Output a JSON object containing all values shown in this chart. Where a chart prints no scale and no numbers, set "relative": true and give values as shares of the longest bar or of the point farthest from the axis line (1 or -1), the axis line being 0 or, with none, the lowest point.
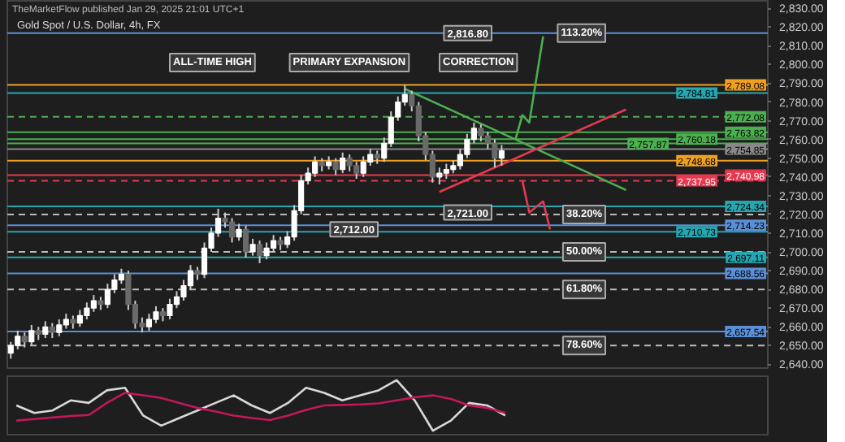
{
  "chart_data": [
    {
      "type": "candlestick",
      "title": "Gold Spot / U.S. Dollar, 4h, FX",
      "annotations": [
        "TheMarketFlow published Jan 29, 2025 21:01 UTC+1",
        "ALL-TIME HIGH",
        "PRIMARY EXPANSION",
        "CORRECTION",
        {
          "text": "113.20%",
          "y": 2816.8
        },
        {
          "text": "38.20%",
          "y": 2720
        },
        {
          "text": "50.00%",
          "y": 2700
        },
        {
          "text": "61.80%",
          "y": 2680
        },
        {
          "text": "78.60%",
          "y": 2650
        },
        {
          "text": "2,816.80",
          "y": 2816.8
        },
        {
          "text": "2,721.00",
          "y": 2721
        },
        {
          "text": "2,712.00",
          "y": 2712
        }
      ],
      "categories": [
        null,
        null,
        null,
        null,
        null,
        null,
        null,
        null,
        null,
        null,
        null,
        null,
        null,
        null,
        null,
        null,
        null,
        null,
        null,
        null,
        null,
        null,
        null,
        null,
        null,
        null,
        null,
        null,
        null,
        null,
        null,
        null,
        null,
        null,
        null,
        null,
        null,
        null,
        null,
        null,
        null,
        null,
        null,
        null,
        null,
        null,
        null,
        null,
        null,
        null,
        null,
        null,
        null,
        null,
        null,
        null,
        null,
        null,
        null,
        null,
        null,
        null,
        null,
        null,
        null,
        null,
        null,
        null,
        null,
        null,
        null,
        null,
        null,
        null,
        null,
        null,
        null,
        null,
        null,
        null,
        null,
        null,
        null,
        null,
        null,
        null,
        null,
        null,
        null,
        null,
        null,
        null,
        null,
        null,
        null,
        null,
        null,
        null,
        null,
        null,
        null,
        null,
        null,
        null,
        null,
        null,
        null,
        null,
        null,
        null
      ],
      "ohlc": [
        [
          2646,
          2652,
          2643,
          2650
        ],
        [
          2650,
          2658,
          2648,
          2655
        ],
        [
          2655,
          2657,
          2649,
          2652
        ],
        [
          2652,
          2661,
          2650,
          2658
        ],
        [
          2658,
          2660,
          2653,
          2656
        ],
        [
          2656,
          2663,
          2654,
          2660
        ],
        [
          2660,
          2662,
          2654,
          2657
        ],
        [
          2657,
          2664,
          2655,
          2661
        ],
        [
          2661,
          2667,
          2659,
          2664
        ],
        [
          2664,
          2666,
          2659,
          2662
        ],
        [
          2662,
          2669,
          2660,
          2666
        ],
        [
          2666,
          2673,
          2664,
          2670
        ],
        [
          2670,
          2677,
          2668,
          2674
        ],
        [
          2674,
          2676,
          2669,
          2672
        ],
        [
          2672,
          2683,
          2670,
          2680
        ],
        [
          2680,
          2688,
          2678,
          2685
        ],
        [
          2685,
          2691,
          2683,
          2688
        ],
        [
          2688,
          2690,
          2669,
          2672
        ],
        [
          2672,
          2674,
          2659,
          2662
        ],
        [
          2662,
          2665,
          2657,
          2660
        ],
        [
          2660,
          2667,
          2658,
          2664
        ],
        [
          2664,
          2671,
          2662,
          2668
        ],
        [
          2668,
          2670,
          2663,
          2666
        ],
        [
          2666,
          2675,
          2664,
          2672
        ],
        [
          2672,
          2679,
          2670,
          2676
        ],
        [
          2676,
          2685,
          2674,
          2682
        ],
        [
          2682,
          2693,
          2680,
          2690
        ],
        [
          2690,
          2692,
          2685,
          2688
        ],
        [
          2688,
          2705,
          2686,
          2702
        ],
        [
          2702,
          2713,
          2700,
          2710
        ],
        [
          2710,
          2723,
          2708,
          2718
        ],
        [
          2718,
          2721,
          2713,
          2716
        ],
        [
          2716,
          2718,
          2705,
          2708
        ],
        [
          2708,
          2715,
          2706,
          2712
        ],
        [
          2712,
          2714,
          2697,
          2700
        ],
        [
          2700,
          2707,
          2698,
          2704
        ],
        [
          2704,
          2706,
          2694,
          2698
        ],
        [
          2698,
          2705,
          2696,
          2702
        ],
        [
          2702,
          2709,
          2700,
          2706
        ],
        [
          2706,
          2708,
          2701,
          2704
        ],
        [
          2704,
          2711,
          2702,
          2708
        ],
        [
          2708,
          2725,
          2706,
          2722
        ],
        [
          2722,
          2741,
          2720,
          2738
        ],
        [
          2738,
          2745,
          2736,
          2742
        ],
        [
          2742,
          2751,
          2740,
          2748
        ],
        [
          2748,
          2750,
          2743,
          2746
        ],
        [
          2746,
          2751,
          2744,
          2748
        ],
        [
          2748,
          2750,
          2741,
          2744
        ],
        [
          2744,
          2753,
          2742,
          2750
        ],
        [
          2750,
          2752,
          2743,
          2746
        ],
        [
          2746,
          2748,
          2739,
          2742
        ],
        [
          2742,
          2751,
          2740,
          2748
        ],
        [
          2748,
          2755,
          2746,
          2752
        ],
        [
          2752,
          2754,
          2747,
          2750
        ],
        [
          2750,
          2761,
          2748,
          2758
        ],
        [
          2758,
          2775,
          2756,
          2772
        ],
        [
          2772,
          2783,
          2770,
          2780
        ],
        [
          2780,
          2789,
          2778,
          2784
        ],
        [
          2784,
          2786,
          2775,
          2778
        ],
        [
          2778,
          2780,
          2759,
          2762
        ],
        [
          2762,
          2764,
          2749,
          2752
        ],
        [
          2752,
          2754,
          2737,
          2740
        ],
        [
          2740,
          2745,
          2736,
          2742
        ],
        [
          2742,
          2747,
          2739,
          2744
        ],
        [
          2744,
          2749,
          2742,
          2746
        ],
        [
          2746,
          2755,
          2744,
          2752
        ],
        [
          2752,
          2763,
          2750,
          2760
        ],
        [
          2760,
          2769,
          2758,
          2766
        ],
        [
          2766,
          2768,
          2759,
          2762
        ],
        [
          2762,
          2764,
          2755,
          2758
        ],
        [
          2758,
          2760,
          2745,
          2750
        ],
        [
          2750,
          2757,
          2746,
          2754
        ],
        null,
        null,
        null,
        null,
        null,
        null,
        null,
        null,
        null,
        null,
        null,
        null,
        null,
        null,
        null,
        null,
        null,
        null,
        null,
        null,
        null,
        null,
        null,
        null,
        null,
        null,
        null,
        null,
        null,
        null,
        null,
        null,
        null,
        null,
        null,
        null,
        null,
        null
      ],
      "series": [
        {
          "type": "line",
          "color": "#4caf50",
          "values": [
            null,
            null,
            null,
            null,
            null,
            null,
            null,
            null,
            null,
            null,
            null,
            null,
            null,
            null,
            null,
            null,
            null,
            null,
            null,
            null,
            null,
            null,
            null,
            null,
            null,
            null,
            null,
            null,
            null,
            null,
            null,
            null,
            null,
            null,
            null,
            null,
            null,
            null,
            null,
            null,
            null,
            null,
            null,
            null,
            null,
            null,
            null,
            null,
            null,
            null,
            null,
            null,
            null,
            null,
            null,
            null,
            null,
            2787,
            null,
            null,
            null,
            null,
            null,
            null,
            null,
            null,
            null,
            null,
            null,
            null,
            null,
            null,
            null,
            null,
            null,
            null,
            null,
            null,
            null,
            null,
            null,
            null,
            null,
            null,
            null,
            null,
            null,
            null,
            null,
            2733,
            null,
            null,
            null,
            null,
            null,
            null,
            null,
            null,
            null,
            null,
            null,
            null,
            null,
            null,
            null,
            null,
            null,
            null,
            null,
            null
          ]
        },
        {
          "type": "line",
          "color": "#e53950",
          "values": [
            null,
            null,
            null,
            null,
            null,
            null,
            null,
            null,
            null,
            null,
            null,
            null,
            null,
            null,
            null,
            null,
            null,
            null,
            null,
            null,
            null,
            null,
            null,
            null,
            null,
            null,
            null,
            null,
            null,
            null,
            null,
            null,
            null,
            null,
            null,
            null,
            null,
            null,
            null,
            null,
            null,
            null,
            null,
            null,
            null,
            null,
            null,
            null,
            null,
            null,
            null,
            null,
            null,
            null,
            null,
            null,
            null,
            null,
            null,
            null,
            null,
            null,
            2732,
            null,
            null,
            null,
            null,
            null,
            null,
            null,
            null,
            null,
            null,
            null,
            null,
            null,
            null,
            null,
            null,
            null,
            null,
            null,
            null,
            null,
            null,
            null,
            null,
            null,
            null,
            2776,
            null,
            null,
            null,
            null,
            null,
            null,
            null,
            null,
            null,
            null,
            null,
            null,
            null,
            null,
            null,
            null,
            null,
            null,
            null,
            null
          ]
        },
        {
          "type": "line",
          "color": "#4caf50",
          "values": [
            null,
            null,
            null,
            null,
            null,
            null,
            null,
            null,
            null,
            null,
            null,
            null,
            null,
            null,
            null,
            null,
            null,
            null,
            null,
            null,
            null,
            null,
            null,
            null,
            null,
            null,
            null,
            null,
            null,
            null,
            null,
            null,
            null,
            null,
            null,
            null,
            null,
            null,
            null,
            null,
            null,
            null,
            null,
            null,
            null,
            null,
            null,
            null,
            null,
            null,
            null,
            null,
            null,
            null,
            null,
            null,
            null,
            null,
            null,
            null,
            null,
            null,
            null,
            null,
            null,
            null,
            null,
            null,
            null,
            null,
            null,
            null,
            null,
            2760,
            2773,
            2769,
            null,
            2815,
            null,
            null,
            null,
            null,
            null,
            null,
            null,
            null,
            null,
            null,
            null,
            null,
            null,
            null,
            null,
            null,
            null,
            null,
            null,
            null,
            null,
            null,
            null,
            null,
            null,
            null,
            null,
            null,
            null,
            null,
            null,
            null
          ]
        },
        {
          "type": "line",
          "color": "#e53950",
          "values": [
            null,
            null,
            null,
            null,
            null,
            null,
            null,
            null,
            null,
            null,
            null,
            null,
            null,
            null,
            null,
            null,
            null,
            null,
            null,
            null,
            null,
            null,
            null,
            null,
            null,
            null,
            null,
            null,
            null,
            null,
            null,
            null,
            null,
            null,
            null,
            null,
            null,
            null,
            null,
            null,
            null,
            null,
            null,
            null,
            null,
            null,
            null,
            null,
            null,
            null,
            null,
            null,
            null,
            null,
            null,
            null,
            null,
            null,
            null,
            null,
            null,
            null,
            null,
            null,
            null,
            null,
            null,
            null,
            null,
            null,
            null,
            null,
            null,
            null,
            2738,
            2721,
            null,
            2727,
            2712,
            null,
            null,
            null,
            null,
            null,
            null,
            null,
            null,
            null,
            null,
            null,
            null,
            null,
            null,
            null,
            null,
            null,
            null,
            null,
            null,
            null,
            null,
            null,
            null,
            null,
            null,
            null,
            null,
            null,
            null,
            null
          ]
        }
      ],
      "ylim": [
        2638,
        2834
      ],
      "yticks": [
        {
          "value": 2640,
          "label": "2,640.00"
        },
        {
          "value": 2650,
          "label": "2,650.00"
        },
        {
          "value": 2660,
          "label": "2,660.00"
        },
        {
          "value": 2670,
          "label": "2,670.00"
        },
        {
          "value": 2680,
          "label": "2,680.00"
        },
        {
          "value": 2690,
          "label": "2,690.00"
        },
        {
          "value": 2700,
          "label": "2,700.00"
        },
        {
          "value": 2710,
          "label": "2,710.00"
        },
        {
          "value": 2720,
          "label": "2,720.00"
        },
        {
          "value": 2730,
          "label": "2,730.00"
        },
        {
          "value": 2740,
          "label": "2,740.00"
        },
        {
          "value": 2750,
          "label": "2,750.00"
        },
        {
          "value": 2760,
          "label": "2,760.00"
        },
        {
          "value": 2770,
          "label": "2,770.00"
        },
        {
          "value": 2780,
          "label": "2,780.00"
        },
        {
          "value": 2790,
          "label": "2,790.00"
        },
        {
          "value": 2800,
          "label": "2,800.00"
        },
        {
          "value": 2810,
          "label": "2,810.00"
        },
        {
          "value": 2820,
          "label": "2,820.00"
        },
        {
          "value": 2830,
          "label": "2,830.00"
        }
      ],
      "tick_labels": "y",
      "ref_lines": [
        {
          "axis": "y",
          "value": 2816.8,
          "color": "#5b8fd6",
          "line_style": "solid"
        },
        {
          "axis": "y",
          "value": 2789.08,
          "label": "2,789.08",
          "color": "#f0a020",
          "line_style": "solid"
        },
        {
          "axis": "y",
          "value": 2784.81,
          "label": "2,784.81",
          "color": "#26a6b0",
          "line_style": "solid"
        },
        {
          "axis": "y",
          "value": 2772.08,
          "label": "2,772.08",
          "color": "#4caf50",
          "line_style": "dashed"
        },
        {
          "axis": "y",
          "value": 2763.82,
          "label": "2,763.82",
          "color": "#4caf50",
          "line_style": "solid"
        },
        {
          "axis": "y",
          "value": 2760.18,
          "label": "2,760.18",
          "color": "#4caf50",
          "line_style": "solid"
        },
        {
          "axis": "y",
          "value": 2757.87,
          "label": "2,757.87",
          "color": "#4caf50",
          "line_style": "solid"
        },
        {
          "axis": "y",
          "value": 2754.85,
          "label": "2,754.85",
          "color": "#888888",
          "line_style": "solid"
        },
        {
          "axis": "y",
          "value": 2748.68,
          "label": "2,748.68",
          "color": "#f0a020",
          "line_style": "solid"
        },
        {
          "axis": "y",
          "value": 2740.98,
          "label": "2,740.98",
          "color": "#e53950",
          "line_style": "solid"
        },
        {
          "axis": "y",
          "value": 2737.95,
          "label": "2,737.95",
          "color": "#e53950",
          "line_style": "dashed"
        },
        {
          "axis": "y",
          "value": 2724.34,
          "label": "2,724.34",
          "color": "#26a6b0",
          "line_style": "solid"
        },
        {
          "axis": "y",
          "value": 2720,
          "color": "#bbbbbb",
          "line_style": "dashed"
        },
        {
          "axis": "y",
          "value": 2714.23,
          "label": "2,714.23",
          "color": "#5b8fd6",
          "line_style": "solid"
        },
        {
          "axis": "y",
          "value": 2710.73,
          "label": "2,710.73",
          "color": "#26a6b0",
          "line_style": "solid"
        },
        {
          "axis": "y",
          "value": 2700,
          "color": "#bbbbbb",
          "line_style": "dashed"
        },
        {
          "axis": "y",
          "value": 2697.11,
          "label": "2,697.11",
          "color": "#26a6b0",
          "line_style": "solid"
        },
        {
          "axis": "y",
          "value": 2688.56,
          "label": "2,688.56",
          "color": "#5b8fd6",
          "line_style": "solid"
        },
        {
          "axis": "y",
          "value": 2680,
          "color": "#bbbbbb",
          "line_style": "dashed"
        },
        {
          "axis": "y",
          "value": 2657.54,
          "label": "2,657.54",
          "color": "#5b8fd6",
          "line_style": "solid"
        },
        {
          "axis": "y",
          "value": 2650,
          "color": "#bbbbbb",
          "line_style": "dashed"
        }
      ]
    },
    {
      "type": "line",
      "relative": true,
      "tick_labels": false,
      "categories": [
        null,
        null,
        null,
        null,
        null,
        null,
        null,
        null,
        null,
        null,
        null,
        null,
        null,
        null,
        null,
        null,
        null,
        null,
        null,
        null,
        null,
        null,
        null,
        null,
        null,
        null,
        null,
        null,
        null,
        null,
        null,
        null,
        null,
        null,
        null,
        null,
        null,
        null,
        null,
        null,
        null,
        null
      ],
      "series": [
        {
          "color": "#d9d9d9",
          "values": [
            0.5,
            0.35,
            0.4,
            0.6,
            0.55,
            0.8,
            0.85,
            0.3,
            0.1,
            0.25,
            0.4,
            0.55,
            0.7,
            0.5,
            0.35,
            0.55,
            0.85,
            0.75,
            0.6,
            0.7,
            0.8,
            1.0,
            0.6,
            0.0,
            0.2,
            0.55,
            0.5,
            0.3,
            null,
            null,
            null,
            null,
            null,
            null,
            null,
            null,
            null,
            null,
            null,
            null,
            null,
            null
          ]
        },
        {
          "color": "#c2185b",
          "values": [
            0.2,
            0.23,
            0.26,
            0.29,
            0.31,
            0.55,
            0.75,
            0.7,
            0.65,
            0.55,
            0.45,
            0.38,
            0.3,
            0.25,
            0.21,
            0.3,
            0.41,
            0.5,
            0.51,
            0.52,
            0.54,
            0.6,
            0.66,
            0.7,
            0.63,
            0.5,
            0.45,
            0.35,
            null,
            null,
            null,
            null,
            null,
            null,
            null,
            null,
            null,
            null,
            null,
            null,
            null,
            null
          ]
        }
      ]
    }
  ]
}
